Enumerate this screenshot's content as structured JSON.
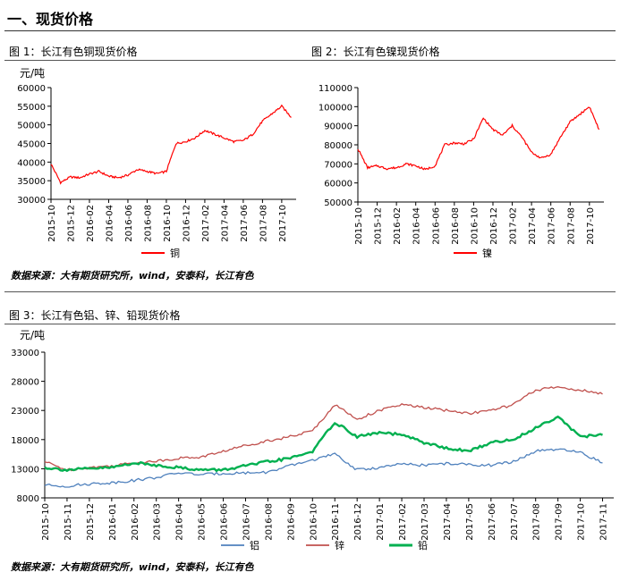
{
  "section_title": "一、现货价格",
  "figure1": {
    "caption": "图 1：长江有色铜现货价格"
  },
  "figure2": {
    "caption": "图 2：长江有色镍现货价格"
  },
  "figure3": {
    "caption": "图 3：长江有色铝、锌、铅现货价格"
  },
  "source_text": "数据来源：大有期货研究所，wind，安泰科，长江有色",
  "colors": {
    "copper": "#ff0000",
    "nickel": "#ff0000",
    "aluminium": "#4f81bd",
    "zinc": "#c0504d",
    "lead": "#00b050"
  },
  "chart_data": [
    {
      "type": "line",
      "unit_label": "元/吨",
      "ylim": [
        30000,
        60000
      ],
      "yticks": [
        "30000",
        "35000",
        "40000",
        "45000",
        "50000",
        "55000",
        "60000"
      ],
      "xticks": [
        "2015-10",
        "2015-12",
        "2016-02",
        "2016-04",
        "2016-06",
        "2016-08",
        "2016-10",
        "2016-12",
        "2017-02",
        "2017-04",
        "2017-06",
        "2017-08",
        "2017-10"
      ],
      "series": [
        {
          "name": "铜",
          "x": [
            "2015-10",
            "2015-11",
            "2015-12",
            "2016-01",
            "2016-02",
            "2016-03",
            "2016-04",
            "2016-05",
            "2016-06",
            "2016-07",
            "2016-08",
            "2016-09",
            "2016-10",
            "2016-11",
            "2016-12",
            "2017-01",
            "2017-02",
            "2017-03",
            "2017-04",
            "2017-05",
            "2017-06",
            "2017-07",
            "2017-08",
            "2017-09",
            "2017-10",
            "2017-11"
          ],
          "values": [
            39500,
            34500,
            36000,
            35800,
            36800,
            37500,
            36200,
            35800,
            36500,
            38000,
            37500,
            36900,
            37500,
            45000,
            45500,
            46500,
            48500,
            47500,
            46500,
            45500,
            45800,
            47500,
            51000,
            53000,
            55000,
            52000
          ]
        }
      ]
    },
    {
      "type": "line",
      "ylim": [
        50000,
        110000
      ],
      "yticks": [
        "50000",
        "60000",
        "70000",
        "80000",
        "90000",
        "100000",
        "110000"
      ],
      "xticks": [
        "2015-10",
        "2015-12",
        "2016-02",
        "2016-04",
        "2016-06",
        "2016-08",
        "2016-10",
        "2016-12",
        "2017-02",
        "2017-04",
        "2017-06",
        "2017-08",
        "2017-10"
      ],
      "series": [
        {
          "name": "镍",
          "x": [
            "2015-10",
            "2015-11",
            "2015-12",
            "2016-01",
            "2016-02",
            "2016-03",
            "2016-04",
            "2016-05",
            "2016-06",
            "2016-07",
            "2016-08",
            "2016-09",
            "2016-10",
            "2016-11",
            "2016-12",
            "2017-01",
            "2017-02",
            "2017-03",
            "2017-04",
            "2017-05",
            "2017-06",
            "2017-07",
            "2017-08",
            "2017-09",
            "2017-10",
            "2017-11"
          ],
          "values": [
            78000,
            68000,
            69000,
            67500,
            68000,
            70000,
            69000,
            67000,
            69000,
            80000,
            81000,
            80500,
            83000,
            94000,
            88000,
            85000,
            90000,
            84000,
            76000,
            73000,
            75000,
            84000,
            92000,
            96000,
            100000,
            88000
          ]
        }
      ]
    },
    {
      "type": "line",
      "unit_label": "元/吨",
      "ylim": [
        8000,
        33000
      ],
      "yticks": [
        "8000",
        "13000",
        "18000",
        "23000",
        "28000",
        "33000"
      ],
      "xticks": [
        "2015-10",
        "2015-11",
        "2015-12",
        "2016-01",
        "2016-02",
        "2016-03",
        "2016-04",
        "2016-05",
        "2016-06",
        "2016-07",
        "2016-08",
        "2016-09",
        "2016-10",
        "2016-11",
        "2016-12",
        "2017-01",
        "2017-02",
        "2017-03",
        "2017-04",
        "2017-05",
        "2017-06",
        "2017-07",
        "2017-08",
        "2017-09",
        "2017-10",
        "2017-11"
      ],
      "series": [
        {
          "name": "铝",
          "x": [
            "2015-10",
            "2015-11",
            "2015-12",
            "2016-01",
            "2016-02",
            "2016-03",
            "2016-04",
            "2016-05",
            "2016-06",
            "2016-07",
            "2016-08",
            "2016-09",
            "2016-10",
            "2016-11",
            "2016-12",
            "2017-01",
            "2017-02",
            "2017-03",
            "2017-04",
            "2017-05",
            "2017-06",
            "2017-07",
            "2017-08",
            "2017-09",
            "2017-10",
            "2017-11"
          ],
          "values": [
            10200,
            10000,
            10400,
            10600,
            11000,
            11500,
            12300,
            12000,
            12200,
            12300,
            12400,
            13500,
            14500,
            15500,
            12800,
            13200,
            13800,
            13600,
            13900,
            13700,
            13600,
            14200,
            16000,
            16300,
            15800,
            14000
          ]
        },
        {
          "name": "锌",
          "x": [
            "2015-10",
            "2015-11",
            "2015-12",
            "2016-01",
            "2016-02",
            "2016-03",
            "2016-04",
            "2016-05",
            "2016-06",
            "2016-07",
            "2016-08",
            "2016-09",
            "2016-10",
            "2016-11",
            "2016-12",
            "2017-01",
            "2017-02",
            "2017-03",
            "2017-04",
            "2017-05",
            "2017-06",
            "2017-07",
            "2017-08",
            "2017-09",
            "2017-10",
            "2017-11"
          ],
          "values": [
            14200,
            12800,
            13200,
            13500,
            14000,
            14300,
            14800,
            15000,
            16000,
            17000,
            17800,
            18500,
            19500,
            24000,
            21500,
            23000,
            24000,
            23500,
            23000,
            22500,
            23000,
            24000,
            26500,
            27000,
            26500,
            25800
          ]
        },
        {
          "name": "铅",
          "x": [
            "2015-10",
            "2015-11",
            "2015-12",
            "2016-01",
            "2016-02",
            "2016-03",
            "2016-04",
            "2016-05",
            "2016-06",
            "2016-07",
            "2016-08",
            "2016-09",
            "2016-10",
            "2016-11",
            "2016-12",
            "2017-01",
            "2017-02",
            "2017-03",
            "2017-04",
            "2017-05",
            "2017-06",
            "2017-07",
            "2017-08",
            "2017-09",
            "2017-10",
            "2017-11"
          ],
          "values": [
            13200,
            12800,
            13000,
            13200,
            14000,
            13600,
            13200,
            12800,
            12800,
            13500,
            14200,
            14800,
            16000,
            21000,
            18500,
            19200,
            18800,
            17500,
            16500,
            16000,
            17500,
            18000,
            20000,
            22000,
            18500,
            18800
          ]
        }
      ]
    }
  ]
}
